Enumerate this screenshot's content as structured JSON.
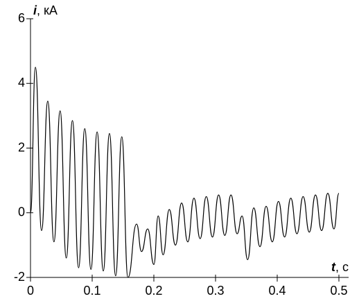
{
  "chart_data": {
    "type": "line",
    "xlabel": "t, c",
    "ylabel": "i, кА",
    "x": [
      0,
      0.008,
      0.018,
      0.028,
      0.038,
      0.048,
      0.058,
      0.068,
      0.078,
      0.088,
      0.098,
      0.108,
      0.118,
      0.128,
      0.138,
      0.148,
      0.158,
      0.172,
      0.18,
      0.19,
      0.2,
      0.207,
      0.215,
      0.225,
      0.235,
      0.245,
      0.255,
      0.265,
      0.275,
      0.285,
      0.295,
      0.305,
      0.315,
      0.325,
      0.335,
      0.343,
      0.352,
      0.362,
      0.372,
      0.382,
      0.392,
      0.402,
      0.412,
      0.422,
      0.432,
      0.442,
      0.452,
      0.462,
      0.472,
      0.482,
      0.492,
      0.5
    ],
    "series": [
      {
        "color": "#000000",
        "values": [
          0,
          4.5,
          -0.55,
          3.45,
          -0.9,
          3.15,
          -1.4,
          2.85,
          -1.7,
          2.6,
          -1.75,
          2.5,
          -1.8,
          2.45,
          -1.95,
          2.35,
          -2.0,
          -0.35,
          -1.2,
          -0.5,
          -1.6,
          -0.1,
          -1.3,
          0.1,
          -1.0,
          0.3,
          -0.9,
          0.45,
          -0.8,
          0.5,
          -0.75,
          0.55,
          -0.7,
          0.55,
          -0.65,
          -0.1,
          -1.45,
          0.15,
          -1.05,
          0.2,
          -0.9,
          0.35,
          -0.75,
          0.45,
          -0.65,
          0.5,
          -0.6,
          0.55,
          -0.55,
          0.6,
          -0.5,
          0.6
        ]
      }
    ],
    "xlim": [
      0,
      0.5
    ],
    "xticks": [
      0,
      0.1,
      0.2,
      0.3,
      0.4,
      0.5
    ],
    "ylim": [
      -2,
      6
    ],
    "yticks": [
      -2,
      0,
      2,
      4,
      6
    ],
    "grid": false
  }
}
